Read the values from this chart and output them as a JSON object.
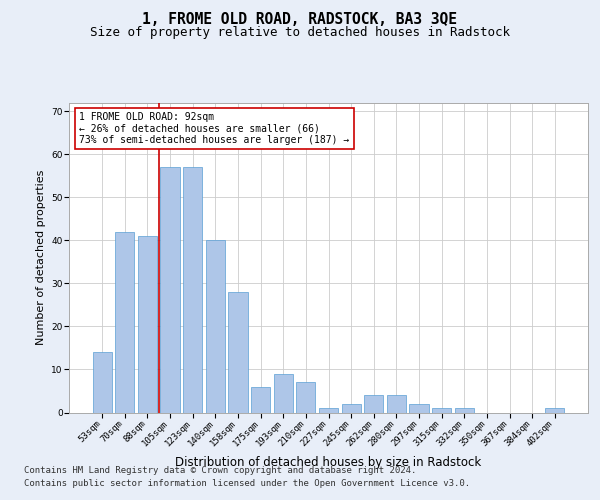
{
  "title": "1, FROME OLD ROAD, RADSTOCK, BA3 3QE",
  "subtitle": "Size of property relative to detached houses in Radstock",
  "xlabel": "Distribution of detached houses by size in Radstock",
  "ylabel": "Number of detached properties",
  "bar_labels": [
    "53sqm",
    "70sqm",
    "88sqm",
    "105sqm",
    "123sqm",
    "140sqm",
    "158sqm",
    "175sqm",
    "193sqm",
    "210sqm",
    "227sqm",
    "245sqm",
    "262sqm",
    "280sqm",
    "297sqm",
    "315sqm",
    "332sqm",
    "350sqm",
    "367sqm",
    "384sqm",
    "402sqm"
  ],
  "bar_values": [
    14,
    42,
    41,
    57,
    57,
    40,
    28,
    6,
    9,
    7,
    1,
    2,
    4,
    4,
    2,
    1,
    1,
    0,
    0,
    0,
    1
  ],
  "bar_color": "#aec6e8",
  "bar_edgecolor": "#5a9fd4",
  "vline_x": 2.5,
  "vline_color": "#cc0000",
  "annotation_text": "1 FROME OLD ROAD: 92sqm\n← 26% of detached houses are smaller (66)\n73% of semi-detached houses are larger (187) →",
  "annotation_box_color": "#ffffff",
  "annotation_box_edgecolor": "#cc0000",
  "ylim": [
    0,
    72
  ],
  "yticks": [
    0,
    10,
    20,
    30,
    40,
    50,
    60,
    70
  ],
  "background_color": "#e8eef8",
  "plot_background": "#ffffff",
  "grid_color": "#cccccc",
  "footer_line1": "Contains HM Land Registry data © Crown copyright and database right 2024.",
  "footer_line2": "Contains public sector information licensed under the Open Government Licence v3.0.",
  "title_fontsize": 10.5,
  "subtitle_fontsize": 9,
  "xlabel_fontsize": 8.5,
  "ylabel_fontsize": 8,
  "tick_fontsize": 6.5,
  "annotation_fontsize": 7,
  "footer_fontsize": 6.5
}
